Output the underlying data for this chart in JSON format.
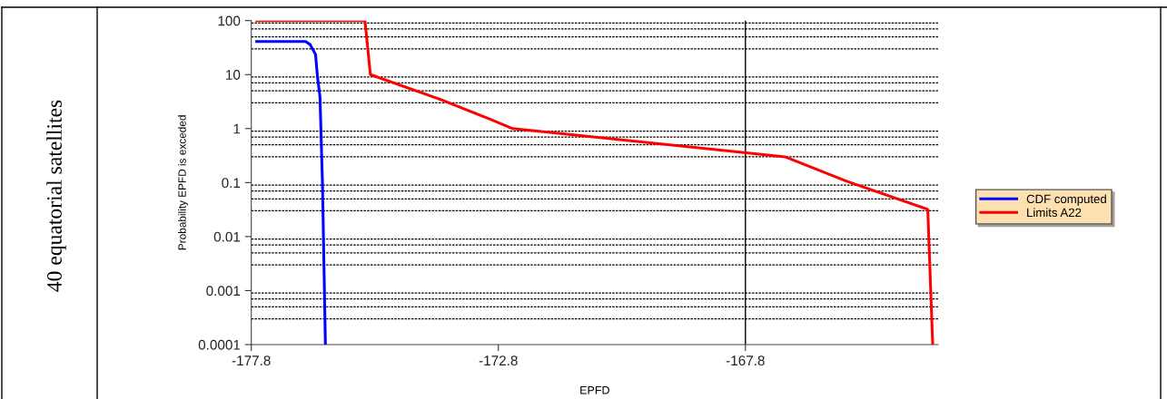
{
  "chart_data": {
    "type": "line",
    "xlabel": "EPFD",
    "ylabel": "Probability EPFD is exceded",
    "annotations": [
      "40 equatorial satellites"
    ],
    "log": "y",
    "xlim": [
      -177.8,
      -163.9
    ],
    "xticks": [
      -177.8,
      -172.8,
      -167.8
    ],
    "ylim": [
      0.0001,
      100
    ],
    "yticks": [
      0.0001,
      0.001,
      0.01,
      0.1,
      1,
      10,
      100
    ],
    "grid": false,
    "legend": "right",
    "line_style": "solid",
    "marker": "none",
    "series": [
      {
        "name": "CDF computed",
        "color": "#0000ff",
        "x": [
          -177.69,
          -176.7,
          -176.61,
          -176.5,
          -176.46,
          -176.41,
          -176.36,
          -176.3
        ],
        "values": [
          41,
          41,
          36,
          23.7,
          9,
          3.9,
          0.1,
          0.0001
        ]
      },
      {
        "name": "Limits A22",
        "color": "#ff0000",
        "x": [
          -177.69,
          -175.5,
          -175.39,
          -173.95,
          -172.97,
          -172.51,
          -167.83,
          -167.0,
          -165.75,
          -164.11,
          -164.01
        ],
        "values": [
          100,
          100,
          10,
          3.4,
          1.5,
          1,
          0.36,
          0.3,
          0.106,
          0.032,
          0.0001
        ]
      }
    ],
    "ref_lines": [
      {
        "axis": "x",
        "value": -167.8,
        "color": "#000000",
        "line_style": "solid"
      },
      {
        "axis": "y",
        "value": 90,
        "color": "#000000",
        "line_style": "dashed"
      },
      {
        "axis": "y",
        "value": 70,
        "color": "#000000",
        "line_style": "dashed"
      },
      {
        "axis": "y",
        "value": 50,
        "color": "#000000",
        "line_style": "dashed"
      },
      {
        "axis": "y",
        "value": 30,
        "color": "#000000",
        "line_style": "dashed"
      },
      {
        "axis": "y",
        "value": 9,
        "color": "#000000",
        "line_style": "dashed"
      },
      {
        "axis": "y",
        "value": 7,
        "color": "#000000",
        "line_style": "dashed"
      },
      {
        "axis": "y",
        "value": 5,
        "color": "#000000",
        "line_style": "dashed"
      },
      {
        "axis": "y",
        "value": 3,
        "color": "#000000",
        "line_style": "dashed"
      },
      {
        "axis": "y",
        "value": 0.9,
        "color": "#000000",
        "line_style": "dashed"
      },
      {
        "axis": "y",
        "value": 0.7,
        "color": "#000000",
        "line_style": "dashed"
      },
      {
        "axis": "y",
        "value": 0.5,
        "color": "#000000",
        "line_style": "dashed"
      },
      {
        "axis": "y",
        "value": 0.3,
        "color": "#000000",
        "line_style": "dashed"
      },
      {
        "axis": "y",
        "value": 0.09,
        "color": "#000000",
        "line_style": "dashed"
      },
      {
        "axis": "y",
        "value": 0.07,
        "color": "#000000",
        "line_style": "dashed"
      },
      {
        "axis": "y",
        "value": 0.05,
        "color": "#000000",
        "line_style": "dashed"
      },
      {
        "axis": "y",
        "value": 0.03,
        "color": "#000000",
        "line_style": "dashed"
      },
      {
        "axis": "y",
        "value": 0.009,
        "color": "#000000",
        "line_style": "dashed"
      },
      {
        "axis": "y",
        "value": 0.007,
        "color": "#000000",
        "line_style": "dashed"
      },
      {
        "axis": "y",
        "value": 0.005,
        "color": "#000000",
        "line_style": "dashed"
      },
      {
        "axis": "y",
        "value": 0.003,
        "color": "#000000",
        "line_style": "dashed"
      },
      {
        "axis": "y",
        "value": 0.0009,
        "color": "#000000",
        "line_style": "dashed"
      },
      {
        "axis": "y",
        "value": 0.0007,
        "color": "#000000",
        "line_style": "dashed"
      },
      {
        "axis": "y",
        "value": 0.0005,
        "color": "#000000",
        "line_style": "dashed"
      },
      {
        "axis": "y",
        "value": 0.0003,
        "color": "#000000",
        "line_style": "dashed"
      }
    ]
  }
}
